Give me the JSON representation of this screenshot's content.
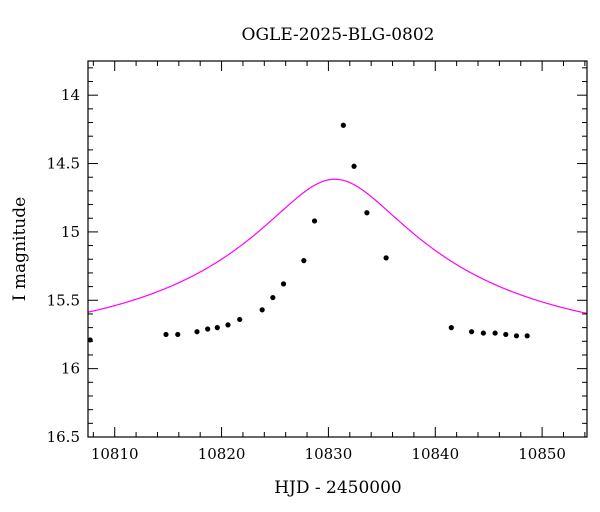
{
  "chart_data": {
    "type": "scatter",
    "title": "OGLE-2025-BLG-0802",
    "xlabel": "HJD - 2450000",
    "ylabel": "I magnitude",
    "xlim": [
      10807.5,
      10854.2
    ],
    "ylim": [
      16.5,
      13.75
    ],
    "y_inverted": true,
    "grid": false,
    "xticks": [
      10810,
      10820,
      10830,
      10840,
      10850
    ],
    "xtick_labels": [
      "10810",
      "10820",
      "10830",
      "10840",
      "10850"
    ],
    "yticks": [
      14,
      14.5,
      15,
      15.5,
      16,
      16.5
    ],
    "ytick_labels": [
      "14",
      "14.5",
      "15",
      "15.5",
      "16",
      "16.5"
    ],
    "colors": {
      "model": "#ff00ff",
      "points": "#000000"
    },
    "series": [
      {
        "type": "scatter",
        "x": [
          10807.7,
          10814.8,
          10815.9,
          10817.7,
          10818.7,
          10819.6,
          10820.6,
          10821.7,
          10823.8,
          10824.8,
          10825.8,
          10827.7,
          10828.7,
          10831.4,
          10832.4,
          10833.6,
          10835.4,
          10841.5,
          10843.4,
          10844.5,
          10845.6,
          10846.6,
          10847.6,
          10848.6
        ],
        "y": [
          15.79,
          15.75,
          15.75,
          15.73,
          15.71,
          15.7,
          15.68,
          15.64,
          15.57,
          15.48,
          15.38,
          15.21,
          14.92,
          14.22,
          14.52,
          14.86,
          15.19,
          15.7,
          15.73,
          15.74,
          15.74,
          15.75,
          15.76,
          15.76
        ]
      },
      {
        "type": "line",
        "model": {
          "t0": 10830.6,
          "u0": 0.21,
          "tE": 28,
          "I_base": 15.834,
          "fs": 0.54
        }
      }
    ]
  }
}
